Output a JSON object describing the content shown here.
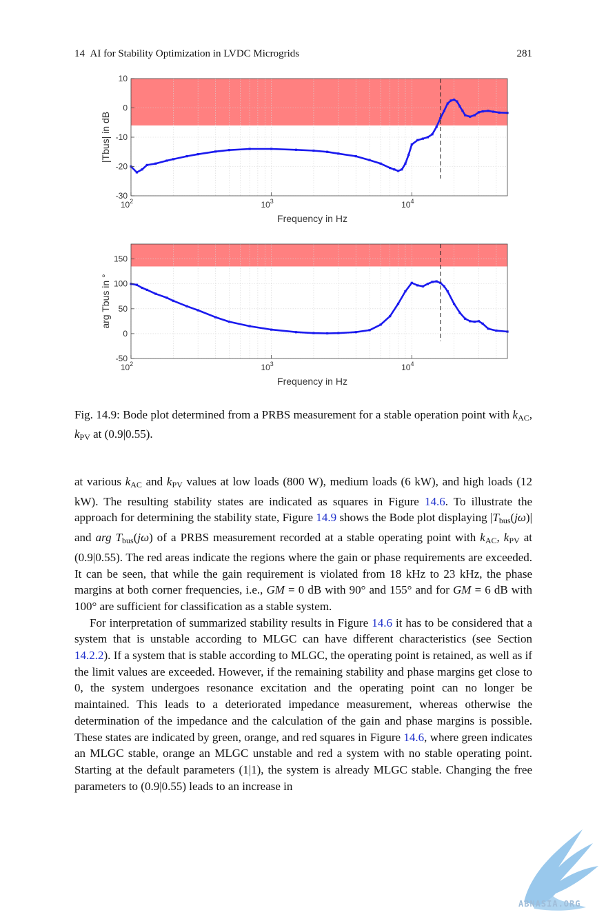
{
  "header": {
    "chapter": "14",
    "title": "AI for Stability Optimization in LVDC Microgrids",
    "page": "281"
  },
  "chart_data": [
    {
      "type": "line",
      "xlabel": "Frequency in Hz",
      "ylabel": "|Tbus| in dB",
      "x_scale": "log",
      "xlim": [
        100,
        48000
      ],
      "ylim": [
        -30,
        10
      ],
      "yticks": [
        "10",
        "0",
        "-10",
        "-20",
        "-30"
      ],
      "xticks": [
        "10",
        "10",
        "10"
      ],
      "xtick_exp": [
        "2",
        "3",
        "4"
      ],
      "grid": true,
      "highlight": {
        "y_from": -6,
        "y_to": 10,
        "color": "#ff8080"
      },
      "vline_x": 16000,
      "series": [
        {
          "color": "#1a1aee",
          "x": [
            100,
            110,
            120,
            130,
            150,
            180,
            200,
            250,
            300,
            400,
            500,
            700,
            1000,
            1500,
            2000,
            2500,
            3000,
            4000,
            5000,
            6000,
            7000,
            7500,
            8000,
            8500,
            9000,
            9500,
            10000,
            11000,
            12000,
            13000,
            14000,
            15000,
            16000,
            17000,
            18000,
            19000,
            20000,
            21000,
            22000,
            23000,
            24000,
            26000,
            28000,
            30000,
            32000,
            35000,
            38000,
            42000,
            48000
          ],
          "y": [
            -20,
            -22,
            -21,
            -19.5,
            -19,
            -18,
            -17.5,
            -16.5,
            -15.8,
            -14.9,
            -14.4,
            -14,
            -14,
            -14.3,
            -14.6,
            -15,
            -15.6,
            -16.5,
            -17.8,
            -19,
            -20.5,
            -21,
            -21.5,
            -21,
            -19,
            -16,
            -12.5,
            -11,
            -10.5,
            -10,
            -9,
            -6.5,
            -3.5,
            -1,
            1.5,
            2.5,
            2.8,
            2.2,
            0.5,
            -1,
            -2.5,
            -3,
            -2.5,
            -1.5,
            -1.2,
            -1,
            -1.3,
            -1.6,
            -1.7
          ]
        }
      ]
    },
    {
      "type": "line",
      "xlabel": "Frequency in Hz",
      "ylabel": "arg Tbus in °",
      "x_scale": "log",
      "xlim": [
        100,
        48000
      ],
      "ylim": [
        -50,
        180
      ],
      "yticks": [
        "150",
        "100",
        "50",
        "0",
        "-50"
      ],
      "xticks": [
        "10",
        "10",
        "10"
      ],
      "xtick_exp": [
        "2",
        "3",
        "4"
      ],
      "grid": true,
      "highlight": {
        "y_from": 135,
        "y_to": 180,
        "color": "#ff8080"
      },
      "vline_x": 16000,
      "series": [
        {
          "color": "#1a1aee",
          "x": [
            100,
            110,
            120,
            130,
            150,
            180,
            200,
            250,
            300,
            400,
            500,
            700,
            1000,
            1500,
            2000,
            2500,
            3000,
            4000,
            5000,
            6000,
            7000,
            8000,
            9000,
            10000,
            11000,
            12000,
            13000,
            14000,
            15000,
            16000,
            17000,
            18000,
            20000,
            22000,
            24000,
            26000,
            28000,
            30000,
            32000,
            35000,
            40000,
            48000
          ],
          "y": [
            100,
            98,
            92,
            88,
            80,
            72,
            66,
            55,
            47,
            33,
            24,
            15,
            8,
            3,
            1,
            0.5,
            1,
            3,
            7,
            18,
            35,
            60,
            85,
            102,
            97,
            95,
            100,
            104,
            105,
            102,
            95,
            85,
            60,
            42,
            30,
            25,
            24,
            25,
            20,
            10,
            6,
            4
          ]
        }
      ]
    }
  ],
  "caption": {
    "label": "Fig. 14.9:",
    "text_1": " Bode plot determined from a PRBS measurement for a stable operation point with ",
    "k": "k",
    "ac": "AC",
    "comma": ", ",
    "pv": "PV",
    "text_2": " at (0.9|0.55)."
  },
  "body": {
    "p1": [
      "at various ",
      "k",
      "AC",
      " and ",
      "k",
      "PV",
      " values at low loads (800 W), medium loads (6 kW), and high loads (12 kW). The resulting stability states are indicated as squares in Figure ",
      "14.6",
      ". To illustrate the approach for determining the stability state, Figure ",
      "14.9",
      " shows the Bode plot displaying |",
      "T",
      "bus",
      "(",
      "jω",
      ")| and ",
      "arg T",
      "bus",
      "(",
      "jω",
      ") of a PRBS measurement recorded at a stable operating point with ",
      "k",
      "AC",
      ", ",
      "k",
      "PV",
      " at (0.9|0.55). The red areas indicate the regions where the gain or phase requirements are exceeded. It can be seen, that while the gain requirement is violated from 18 kHz to 23 kHz, the phase margins at both corner frequencies, i.e., ",
      "GM",
      " = 0 dB with 90° and 155° and for ",
      "GM",
      " = 6 dB with 100° are sufficient for classification as a stable system."
    ],
    "p2": [
      "For interpretation of summarized stability results in Figure ",
      "14.6",
      " it has to be considered that a system that is unstable according to MLGC can have different characteristics (see Section ",
      "14.2.2",
      "). If a system that is stable according to MLGC, the operating point is retained, as well as if the limit values are exceeded. However, if the remaining stability and phase margins get close to 0, the system undergoes resonance excitation and the operating point can no longer be maintained. This leads to a deteriorated impedance measurement, whereas otherwise the determination of the impedance and the calculation of the gain and phase margins is possible. These states are indicated by green, orange, and red squares in Figure ",
      "14.6",
      ", where green indicates an MLGC stable, orange an MLGC unstable and red a system with no stable operating point. Starting at the default parameters (1|1), the system is already MLGC stable. Changing the free parameters to (0.9|0.55) leads to an increase in"
    ]
  },
  "watermark": {
    "text": "ABNASIA.ORG"
  }
}
